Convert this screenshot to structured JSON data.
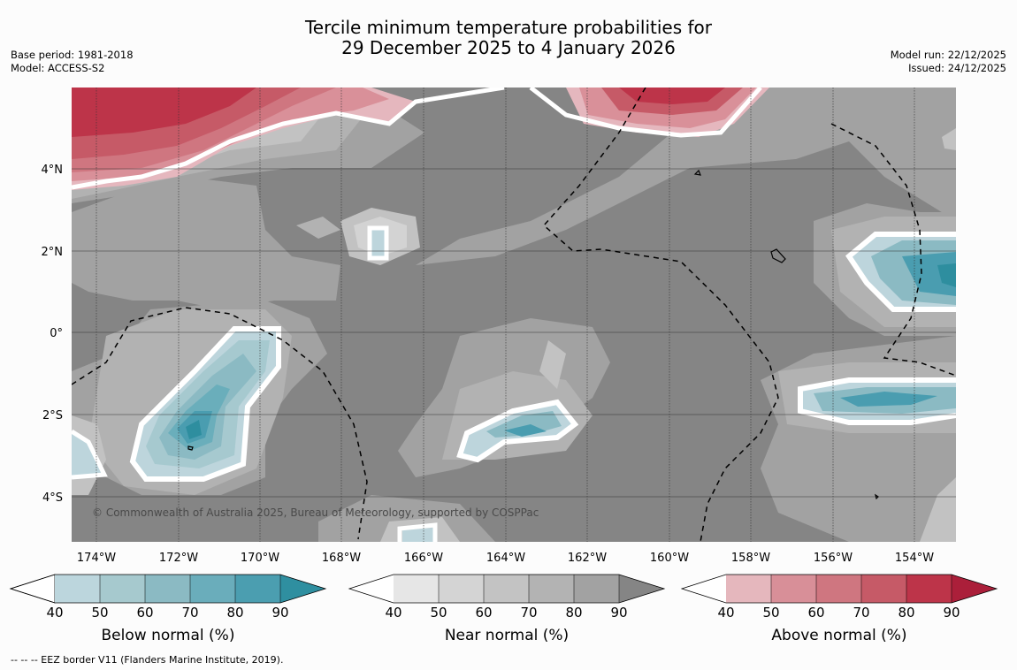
{
  "title": {
    "line1": "Tercile minimum temperature probabilities for",
    "line2": "29 December 2025 to 4 January 2026"
  },
  "info_left": {
    "base_period": "Base period: 1981-2018",
    "model": "Model: ACCESS-S2"
  },
  "info_right": {
    "model_run": "Model run: 22/12/2025",
    "issued": "Issued: 24/12/2025"
  },
  "map": {
    "lon_labels": [
      "174°W",
      "172°W",
      "170°W",
      "168°W",
      "166°W",
      "164°W",
      "162°W",
      "160°W",
      "158°W",
      "156°W",
      "154°W"
    ],
    "lat_labels": [
      "4°N",
      "2°N",
      "0°",
      "2°S",
      "4°S"
    ],
    "copyright": "© Commonwealth of Australia 2025, Bureau of Meteorology, supported by COSPPac",
    "colors": {
      "background": "#858585",
      "near": [
        "#e6e6e6",
        "#d3d3d3",
        "#c2c2c2",
        "#b2b2b2",
        "#a2a2a2"
      ],
      "below": [
        "#bdd5dc",
        "#a6c9cf",
        "#8bbac3",
        "#6aaebb",
        "#4a9db0",
        "#2e8e9f"
      ],
      "above": [
        "#e5b7be",
        "#d99099",
        "#cf7680",
        "#c65a67",
        "#bd3449",
        "#b11f3b"
      ]
    }
  },
  "colorbars": [
    {
      "name": "below",
      "label": "Below normal (%)",
      "ticks": [
        "40",
        "50",
        "60",
        "70",
        "80",
        "90"
      ],
      "colors": [
        "#bcd6dd",
        "#a6c9ce",
        "#8bbac3",
        "#6aadbb",
        "#4b9eb0"
      ],
      "end_color": "#2f8fa0"
    },
    {
      "name": "near",
      "label": "Near normal (%)",
      "ticks": [
        "40",
        "50",
        "60",
        "70",
        "80",
        "90"
      ],
      "colors": [
        "#e6e6e6",
        "#d4d4d4",
        "#c3c3c3",
        "#b3b3b3",
        "#a2a2a2"
      ],
      "end_color": "#858585"
    },
    {
      "name": "above",
      "label": "Above normal (%)",
      "ticks": [
        "40",
        "50",
        "60",
        "70",
        "80",
        "90"
      ],
      "colors": [
        "#e5b7bd",
        "#d88f98",
        "#cf7680",
        "#c65a67",
        "#bd3449"
      ],
      "end_color": "#ab1f3a"
    }
  ],
  "footnote": "--  --  -- EEZ border V11 (Flanders Marine Institute, 2019)."
}
